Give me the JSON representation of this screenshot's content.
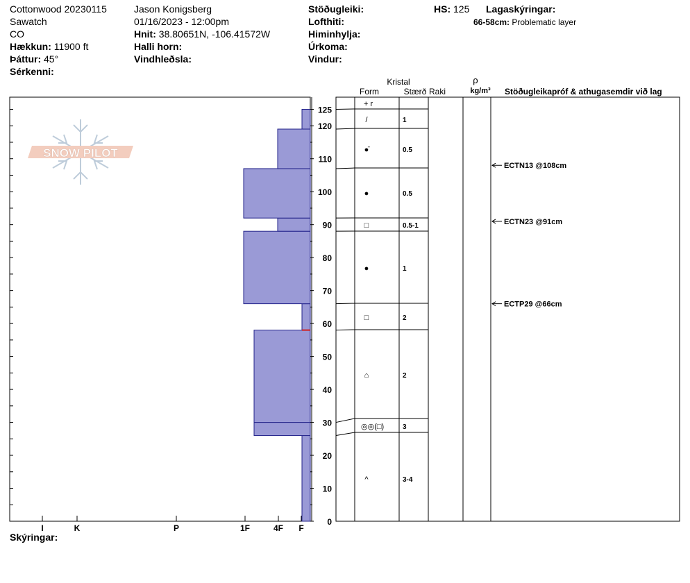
{
  "header": {
    "site": "Cottonwood 20230115",
    "range": "Sawatch",
    "state": "CO",
    "elevation_label": "Hækkun:",
    "elevation_value": "11900 ft",
    "aspect_label": "Þáttur:",
    "aspect_value": "45°",
    "features_label": "Sérkenni:",
    "observer": "Jason Konigsberg",
    "datetime": "01/16/2023 - 12:00pm",
    "coords_label": "Hnit:",
    "coords_value": "38.80651N, -106.41572W",
    "slope_label": "Halli horn:",
    "wind_loading_label": "Vindhleðsla:",
    "stability_label": "Stöðugleiki:",
    "air_temp_label": "Lofthiti:",
    "sky_label": "Himinhylja:",
    "precip_label": "Úrkoma:",
    "wind_label": "Vindur:",
    "hs_label": "HS:",
    "hs_value": "125",
    "layer_notes_label": "Lagaskýringar:",
    "layer_notes_range": "66-58cm:",
    "layer_notes_text": "Problematic layer",
    "legend_label": "Skýringar:"
  },
  "logo_text": "SNOW PILOT",
  "columns": {
    "crystal": "Kristal",
    "form": "Form",
    "size": "Stærð",
    "moisture": "Raki",
    "density_symbol": "ρ",
    "density_unit": "kg/m³",
    "stability_comments": "Stöðugleikapróf & athugasemdir við lag"
  },
  "chart_data": {
    "type": "snow_profile",
    "y_unit": "cm",
    "ylim": [
      0,
      128
    ],
    "y_ticks": [
      0,
      10,
      20,
      30,
      40,
      50,
      60,
      70,
      80,
      90,
      100,
      110,
      120,
      125
    ],
    "hardness_scale": [
      "I",
      "K",
      "P",
      "1F",
      "4F",
      "F"
    ],
    "snow_height": 125,
    "layers": [
      {
        "bottom": 0,
        "top": 26,
        "hardness": "F",
        "form": "^",
        "size": "3-4"
      },
      {
        "bottom": 26,
        "top": 30,
        "hardness": "1F+",
        "form": "◎◎(□)",
        "size": "3"
      },
      {
        "bottom": 30,
        "top": 58,
        "hardness": "1F+",
        "form": "⌂",
        "size": "2"
      },
      {
        "bottom": 58,
        "top": 66,
        "hardness": "F",
        "form": "□",
        "size": "2"
      },
      {
        "bottom": 66,
        "top": 88,
        "hardness": "1F",
        "form": "●",
        "size": "1"
      },
      {
        "bottom": 88,
        "top": 92,
        "hardness": "4F",
        "form": "□",
        "size": "0.5-1"
      },
      {
        "bottom": 92,
        "top": 107,
        "hardness": "1F",
        "form": "●",
        "size": "0.5"
      },
      {
        "bottom": 107,
        "top": 119,
        "hardness": "4F",
        "form": "●̄",
        "size": "0.5"
      },
      {
        "bottom": 119,
        "top": 125,
        "hardness": "F",
        "form": "/",
        "size": "1"
      }
    ],
    "surface_form": "+ r",
    "problem_layer": {
      "depth": 58
    },
    "stability_tests": [
      {
        "label": "ECTN13 @108cm",
        "depth": 108
      },
      {
        "label": "ECTN23 @91cm",
        "depth": 91
      },
      {
        "label": "ECTP29 @66cm",
        "depth": 66
      }
    ]
  }
}
